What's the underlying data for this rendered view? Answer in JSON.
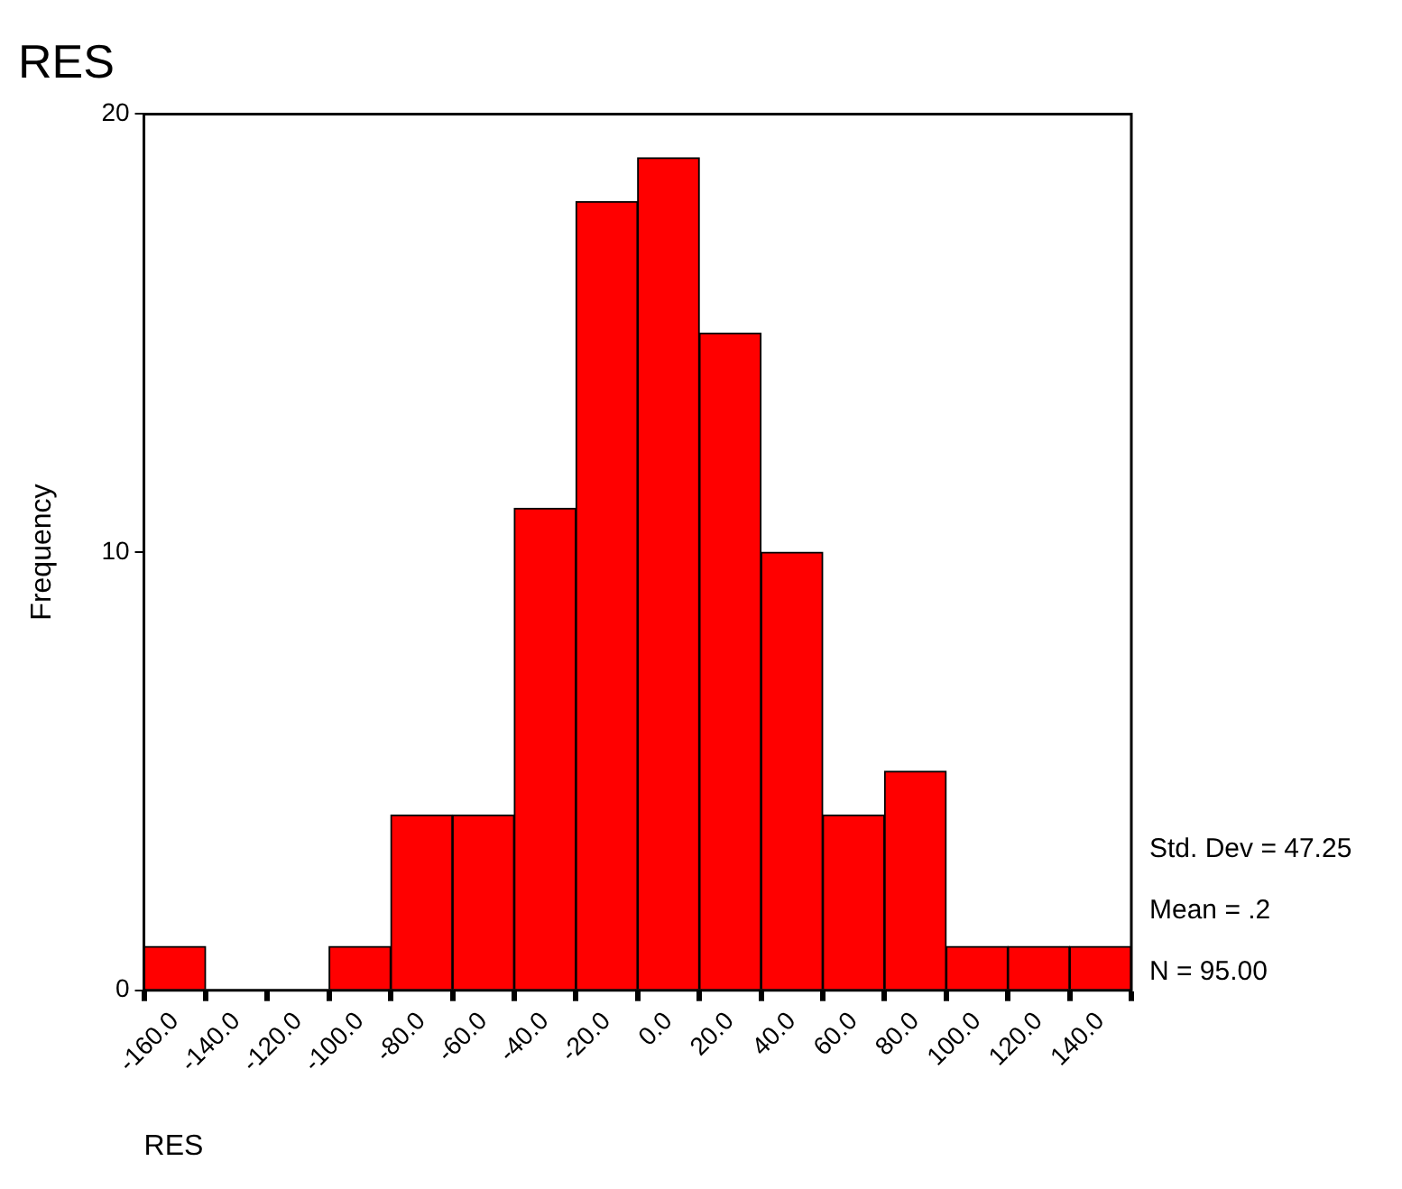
{
  "chart_data": {
    "type": "histogram",
    "title": "RES",
    "xlabel": "RES",
    "ylabel": "Frequency",
    "bins": [
      -170,
      -150,
      -130,
      -110,
      -90,
      -70,
      -50,
      -30,
      -10,
      10,
      30,
      50,
      70,
      90,
      110,
      130,
      150
    ],
    "values": [
      1,
      0,
      0,
      1,
      4,
      4,
      11,
      18,
      19,
      15,
      10,
      4,
      5,
      1,
      1,
      1
    ],
    "color": "#ff0000",
    "xlim": [
      -170,
      150
    ],
    "xticks": [
      {
        "value": -160,
        "label": "-160.0"
      },
      {
        "value": -140,
        "label": "-140.0"
      },
      {
        "value": -120,
        "label": "-120.0"
      },
      {
        "value": -100,
        "label": "-100.0"
      },
      {
        "value": -80,
        "label": "-80.0"
      },
      {
        "value": -60,
        "label": "-60.0"
      },
      {
        "value": -40,
        "label": "-40.0"
      },
      {
        "value": -20,
        "label": "-20.0"
      },
      {
        "value": 0,
        "label": "0.0"
      },
      {
        "value": 20,
        "label": "20.0"
      },
      {
        "value": 40,
        "label": "40.0"
      },
      {
        "value": 60,
        "label": "60.0"
      },
      {
        "value": 80,
        "label": "80.0"
      },
      {
        "value": 100,
        "label": "100.0"
      },
      {
        "value": 120,
        "label": "120.0"
      },
      {
        "value": 140,
        "label": "140.0"
      }
    ],
    "ylim": [
      0,
      20
    ],
    "yticks": [
      0,
      10,
      20
    ],
    "grid": false,
    "legend": false,
    "annotations": [
      "Std. Dev = 47.25",
      "Mean = .2",
      "N = 95.00"
    ]
  }
}
